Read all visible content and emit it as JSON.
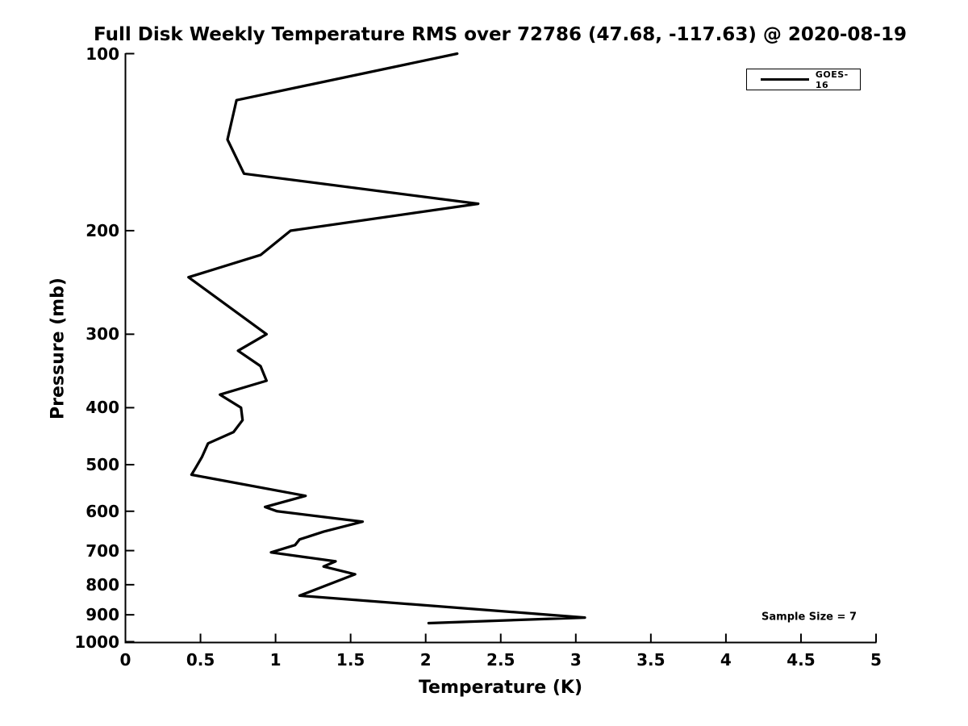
{
  "page": {
    "title": "Full Disk Weekly Temperature RMS over 72786 (47.68, -117.63) @ 2020-08-19"
  },
  "chart_data": {
    "type": "line",
    "title": "Full Disk Weekly Temperature RMS over 72786 (47.68, -117.63) @ 2020-08-19",
    "xlabel": "Temperature (K)",
    "ylabel": "Pressure (mb)",
    "xlim": [
      0,
      5
    ],
    "ylim": [
      100,
      1000
    ],
    "yscale": "log",
    "y_axis_inverted_pressure": true,
    "grid": false,
    "line_color": "#000000",
    "background_color": "#ffffff",
    "xticks": [
      0,
      0.5,
      1,
      1.5,
      2,
      2.5,
      3,
      3.5,
      4,
      4.5,
      5
    ],
    "xtick_labels": [
      "0",
      "0.5",
      "1",
      "1.5",
      "2",
      "2.5",
      "3",
      "3.5",
      "4",
      "4.5",
      "5"
    ],
    "yticks": [
      100,
      200,
      300,
      400,
      500,
      600,
      700,
      800,
      900,
      1000
    ],
    "ytick_labels": [
      "100",
      "200",
      "300",
      "400",
      "500",
      "600",
      "700",
      "800",
      "900",
      "1000"
    ],
    "legend": {
      "position": "top-right",
      "entries": [
        {
          "label": "GOES-16",
          "color": "#000000",
          "line_width": 3
        }
      ]
    },
    "annotation": "Sample Size = 7",
    "series": [
      {
        "name": "GOES-16",
        "color": "#000000",
        "points_temperature_K_vs_pressure_mb": [
          [
            2.21,
            100
          ],
          [
            0.74,
            120
          ],
          [
            0.68,
            140
          ],
          [
            0.79,
            160
          ],
          [
            2.35,
            180
          ],
          [
            1.1,
            200
          ],
          [
            0.9,
            220
          ],
          [
            0.42,
            240
          ],
          [
            0.94,
            300
          ],
          [
            0.75,
            320
          ],
          [
            0.9,
            340
          ],
          [
            0.94,
            360
          ],
          [
            0.63,
            380
          ],
          [
            0.77,
            400
          ],
          [
            0.78,
            420
          ],
          [
            0.72,
            440
          ],
          [
            0.55,
            460
          ],
          [
            0.51,
            485
          ],
          [
            0.47,
            505
          ],
          [
            0.44,
            520
          ],
          [
            1.2,
            565
          ],
          [
            0.93,
            590
          ],
          [
            1.01,
            600
          ],
          [
            1.58,
            625
          ],
          [
            1.32,
            650
          ],
          [
            1.16,
            670
          ],
          [
            1.13,
            685
          ],
          [
            0.97,
            705
          ],
          [
            1.4,
            730
          ],
          [
            1.32,
            745
          ],
          [
            1.53,
            768
          ],
          [
            1.16,
            835
          ],
          [
            3.06,
            910
          ],
          [
            2.02,
            930
          ]
        ]
      }
    ]
  }
}
